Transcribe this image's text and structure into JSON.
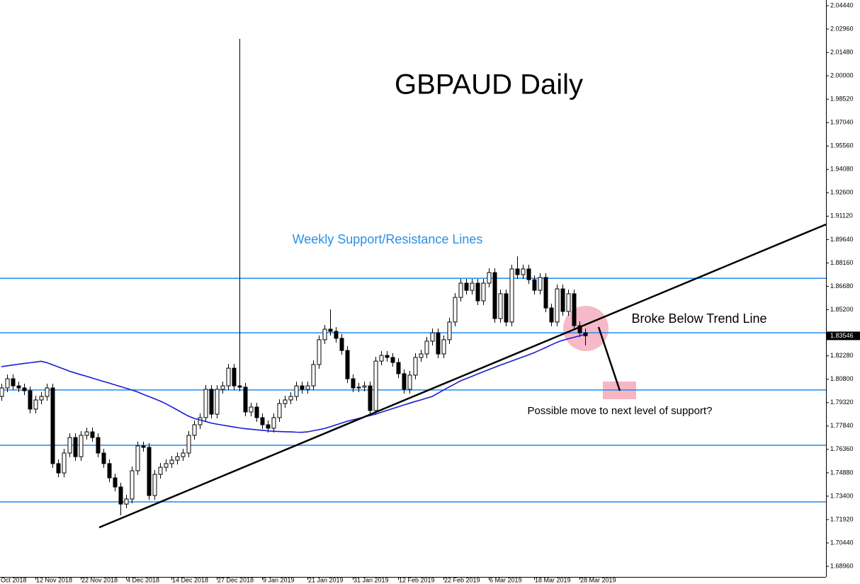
{
  "chart_data": {
    "type": "candlestick",
    "title": "GBPAUD Daily",
    "annotations": [
      "Weekly Support/Resistance Lines",
      "Broke Below Trend Line",
      "Possible move to next level of support?"
    ],
    "categories": [
      "Oct 2018",
      null,
      null,
      null,
      null,
      null,
      null,
      null,
      "12 Nov 2018",
      null,
      null,
      null,
      null,
      null,
      null,
      null,
      "22 Nov 2018",
      null,
      null,
      null,
      null,
      null,
      null,
      null,
      "4 Dec 2018",
      null,
      null,
      null,
      null,
      null,
      null,
      null,
      "14 Dec 2018",
      null,
      null,
      null,
      null,
      null,
      null,
      null,
      "27 Dec 2018",
      null,
      null,
      null,
      null,
      null,
      null,
      null,
      "9 Jan 2019",
      null,
      null,
      null,
      null,
      null,
      null,
      null,
      "21 Jan 2019",
      null,
      null,
      null,
      null,
      null,
      null,
      null,
      "31 Jan 2019",
      null,
      null,
      null,
      null,
      null,
      null,
      null,
      "12 Feb 2019",
      null,
      null,
      null,
      null,
      null,
      null,
      null,
      "22 Feb 2019",
      null,
      null,
      null,
      null,
      null,
      null,
      null,
      "6 Mar 2019",
      null,
      null,
      null,
      null,
      null,
      null,
      null,
      "18 Mar 2019",
      null,
      null,
      null,
      null,
      null,
      null,
      null,
      "28 Mar 2019",
      null
    ],
    "open": [
      null,
      null,
      1.7971,
      1.8025,
      1.8083,
      1.8038,
      1.8025,
      1.8007,
      1.7891,
      1.7949,
      1.7971,
      1.8025,
      1.7546,
      1.7487,
      1.7613,
      1.7711,
      1.759,
      1.7725,
      1.7747,
      1.7711,
      1.7613,
      1.7546,
      1.7456,
      1.7398,
      1.729,
      1.7322,
      1.7501,
      1.7658,
      1.7649,
      1.7344,
      1.7478,
      1.7523,
      1.7546,
      1.7568,
      1.759,
      1.7613,
      1.7725,
      1.7792,
      1.7837,
      1.8016,
      1.7859,
      1.8016,
      1.8038,
      1.815,
      1.8038,
      1.803,
      1.7873,
      1.7904,
      1.7837,
      1.7792,
      1.777,
      1.7837,
      1.7926,
      1.7949,
      1.7971,
      1.8038,
      1.8016,
      1.8038,
      1.8173,
      1.833,
      1.8397,
      1.8383,
      1.8339,
      1.8262,
      1.8083,
      1.8025,
      1.803,
      1.8038,
      1.7882,
      1.8195,
      1.8231,
      1.8218,
      1.8186,
      1.8115,
      1.8016,
      1.8106,
      1.8218,
      1.824,
      1.8321,
      1.8374,
      1.824,
      1.833,
      1.8442,
      1.8598,
      1.8688,
      1.8643,
      1.8688,
      1.8576,
      1.8688,
      1.8755,
      1.8464,
      1.8621,
      1.8442,
      1.8778,
      1.8742,
      1.8778,
      1.871,
      1.8643,
      1.8724,
      1.8531,
      1.8442,
      1.8652,
      1.8509,
      1.8621,
      1.8419,
      1.8374
    ],
    "high": [
      null,
      null,
      1.8052,
      1.811,
      1.811,
      1.8065,
      1.8052,
      1.8034,
      1.7976,
      1.7998,
      1.8052,
      1.8052,
      1.7573,
      1.764,
      1.7738,
      1.7738,
      1.7752,
      1.7774,
      1.7774,
      1.7738,
      1.764,
      1.7573,
      1.7483,
      1.7425,
      1.7349,
      1.7528,
      1.7685,
      1.7685,
      1.7676,
      1.7505,
      1.755,
      1.7573,
      1.7595,
      1.7617,
      1.764,
      1.7752,
      1.7819,
      1.7864,
      1.8043,
      1.8043,
      1.8043,
      1.8065,
      1.8177,
      1.8177,
      2.0234,
      1.8057,
      1.7931,
      1.7931,
      1.7864,
      1.7819,
      1.7864,
      1.7953,
      1.7976,
      1.7998,
      1.8065,
      1.8065,
      1.8065,
      1.82,
      1.8357,
      1.8424,
      1.8522,
      1.841,
      1.8366,
      1.8289,
      1.811,
      1.8057,
      1.8065,
      1.8065,
      1.8222,
      1.8258,
      1.8258,
      1.8245,
      1.8213,
      1.8142,
      1.8133,
      1.8245,
      1.8267,
      1.8348,
      1.8401,
      1.8401,
      1.8357,
      1.8469,
      1.8625,
      1.8715,
      1.8715,
      1.8715,
      1.8715,
      1.8715,
      1.8782,
      1.8782,
      1.8648,
      1.8648,
      1.8805,
      1.8858,
      1.8805,
      1.8805,
      1.8737,
      1.8751,
      1.8751,
      1.8558,
      1.8679,
      1.8679,
      1.8648,
      1.8648,
      1.8446,
      1.8401
    ],
    "low": [
      null,
      null,
      1.7944,
      1.7998,
      1.8011,
      1.7998,
      1.798,
      1.7864,
      1.7864,
      1.7922,
      1.7944,
      1.7519,
      1.746,
      1.746,
      1.7586,
      1.7563,
      1.7563,
      1.7698,
      1.7684,
      1.7586,
      1.7519,
      1.7429,
      1.7371,
      1.7219,
      1.7263,
      1.7295,
      1.7474,
      1.7622,
      1.7317,
      1.7317,
      1.7451,
      1.7496,
      1.7519,
      1.7541,
      1.7563,
      1.7586,
      1.7698,
      1.7765,
      1.781,
      1.7832,
      1.7832,
      1.7989,
      1.8011,
      1.8011,
      1.8003,
      1.7846,
      1.7846,
      1.781,
      1.7765,
      1.7743,
      1.7743,
      1.781,
      1.7899,
      1.7922,
      1.7944,
      1.7989,
      1.7989,
      1.8011,
      1.8146,
      1.8303,
      1.8356,
      1.8312,
      1.8235,
      1.8056,
      1.7998,
      1.7998,
      1.8003,
      1.7855,
      1.7855,
      1.8168,
      1.8191,
      1.8159,
      1.8088,
      1.7989,
      1.7989,
      1.8079,
      1.8191,
      1.8213,
      1.8294,
      1.8213,
      1.8213,
      1.8303,
      1.8415,
      1.8571,
      1.8616,
      1.8616,
      1.8549,
      1.8549,
      1.8661,
      1.8437,
      1.8437,
      1.8415,
      1.8415,
      1.8715,
      1.8715,
      1.8683,
      1.8616,
      1.8616,
      1.8504,
      1.8415,
      1.8415,
      1.8482,
      1.8482,
      1.8392,
      1.8347,
      1.8294
    ],
    "close": [
      null,
      null,
      1.8025,
      1.8083,
      1.8038,
      1.8025,
      1.8007,
      1.7891,
      1.7949,
      1.7971,
      1.8025,
      1.7546,
      1.7487,
      1.7613,
      1.7711,
      1.759,
      1.7725,
      1.7747,
      1.7711,
      1.7613,
      1.7546,
      1.7456,
      1.7398,
      1.729,
      1.7322,
      1.7501,
      1.7658,
      1.7649,
      1.7344,
      1.7478,
      1.7523,
      1.7546,
      1.7568,
      1.759,
      1.7613,
      1.7725,
      1.7792,
      1.7837,
      1.8016,
      1.7859,
      1.8016,
      1.8038,
      1.815,
      1.8038,
      1.803,
      1.7873,
      1.7904,
      1.7837,
      1.7792,
      1.777,
      1.7837,
      1.7926,
      1.7949,
      1.7971,
      1.8038,
      1.8016,
      1.8038,
      1.8173,
      1.833,
      1.8397,
      1.8383,
      1.8339,
      1.8262,
      1.8083,
      1.8025,
      1.803,
      1.8038,
      1.7882,
      1.8195,
      1.8231,
      1.8218,
      1.8186,
      1.8115,
      1.8016,
      1.8106,
      1.8218,
      1.824,
      1.8321,
      1.8374,
      1.824,
      1.833,
      1.8442,
      1.8598,
      1.8688,
      1.8643,
      1.8688,
      1.8576,
      1.8688,
      1.8755,
      1.8464,
      1.8621,
      1.8442,
      1.8778,
      1.8742,
      1.8778,
      1.871,
      1.8643,
      1.8724,
      1.8531,
      1.8442,
      1.8652,
      1.8509,
      1.8621,
      1.8419,
      1.8374,
      1.83546
    ],
    "ma": {
      "color": "#1a1ad4",
      "values": [
        null,
        null,
        1.816,
        1.8165,
        1.817,
        1.8175,
        1.818,
        1.8184,
        1.8189,
        1.8194,
        1.8185,
        1.8172,
        1.8158,
        1.8145,
        1.8131,
        1.812,
        1.8109,
        1.8099,
        1.8088,
        1.8077,
        1.8066,
        1.8056,
        1.8045,
        1.8034,
        1.8023,
        1.8012,
        1.8,
        1.7985,
        1.7971,
        1.7957,
        1.7942,
        1.7925,
        1.7906,
        1.7886,
        1.7866,
        1.7847,
        1.7832,
        1.7823,
        1.7813,
        1.7803,
        1.7796,
        1.779,
        1.7784,
        1.7778,
        1.7772,
        1.7767,
        1.7764,
        1.776,
        1.7757,
        1.7753,
        1.7751,
        1.7749,
        1.7748,
        1.7747,
        1.7745,
        1.7744,
        1.7747,
        1.7754,
        1.7761,
        1.7768,
        1.7779,
        1.7791,
        1.7802,
        1.7814,
        1.7823,
        1.7832,
        1.7841,
        1.785,
        1.7859,
        1.7871,
        1.7882,
        1.7894,
        1.7905,
        1.7917,
        1.7928,
        1.7939,
        1.7949,
        1.796,
        1.7971,
        1.7991,
        1.8011,
        1.8031,
        1.805,
        1.807,
        1.8084,
        1.8098,
        1.8113,
        1.8127,
        1.8141,
        1.8155,
        1.8169,
        1.8182,
        1.8195,
        1.8208,
        1.8221,
        1.8234,
        1.8248,
        1.8264,
        1.828,
        1.8297,
        1.8313,
        1.8326,
        1.8336,
        1.8345,
        1.8355,
        1.8365
      ]
    },
    "levels": {
      "color": "#1e8cf0",
      "values": [
        1.8719,
        1.8374,
        1.8012,
        1.7662,
        1.7304
      ]
    },
    "trendline": {
      "color": "#000000",
      "x": [
        19.25,
        147.5
      ],
      "values": [
        1.7142,
        1.906
      ]
    },
    "up_color": "#ffffff",
    "down_color": "#000000",
    "last_price": 1.83546,
    "ylim": [
      1.6829,
      2.048
    ],
    "yticks": [
      {
        "value": 2.0444,
        "label": "2.04440"
      },
      {
        "value": 2.0296,
        "label": "2.02960"
      },
      {
        "value": 2.0148,
        "label": "2.01480"
      },
      {
        "value": 2.0,
        "label": "2.00000"
      },
      {
        "value": 1.9852,
        "label": "1.98520"
      },
      {
        "value": 1.9704,
        "label": "1.97040"
      },
      {
        "value": 1.9556,
        "label": "1.95560"
      },
      {
        "value": 1.9408,
        "label": "1.94080"
      },
      {
        "value": 1.926,
        "label": "1.92600"
      },
      {
        "value": 1.9112,
        "label": "1.91120"
      },
      {
        "value": 1.8964,
        "label": "1.89640"
      },
      {
        "value": 1.8816,
        "label": "1.88160"
      },
      {
        "value": 1.8668,
        "label": "1.86680"
      },
      {
        "value": 1.852,
        "label": "1.85200"
      },
      {
        "value": 1.8228,
        "label": "1.82280"
      },
      {
        "value": 1.808,
        "label": "1.80800"
      },
      {
        "value": 1.7932,
        "label": "1.79320"
      },
      {
        "value": 1.7784,
        "label": "1.77840"
      },
      {
        "value": 1.7636,
        "label": "1.76360"
      },
      {
        "value": 1.7488,
        "label": "1.74880"
      },
      {
        "value": 1.734,
        "label": "1.73400"
      },
      {
        "value": 1.7192,
        "label": "1.71920"
      },
      {
        "value": 1.7044,
        "label": "1.70440"
      },
      {
        "value": 1.6896,
        "label": "1.68960"
      }
    ]
  }
}
